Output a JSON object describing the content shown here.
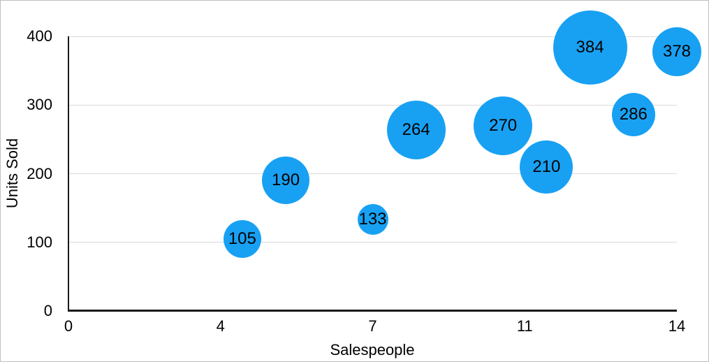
{
  "figure": {
    "background": "#ffffff",
    "border_color": "#bfbfbf"
  },
  "chart_data": {
    "type": "scatter",
    "subtype": "bubble",
    "title": "",
    "xlabel": "Salespeople",
    "ylabel": "Units Sold",
    "xlim": [
      0,
      14
    ],
    "ylim": [
      0,
      400
    ],
    "x_tick_labels": [
      "0",
      "4",
      "7",
      "11",
      "14"
    ],
    "x_tick_spacing": "even",
    "y_tick_labels": [
      "0",
      "100",
      "200",
      "300",
      "400"
    ],
    "grid": "horizontal-only",
    "legend": "none",
    "bubble_color": "#18a1f3",
    "bubble_label_color": "#000000",
    "axis_color": "#1a1a1a",
    "gridline_color": "#dadada",
    "text_color": "#000000",
    "points": [
      {
        "x": 4,
        "y": 105,
        "label": "105",
        "radius_px": 27
      },
      {
        "x": 5,
        "y": 190,
        "label": "190",
        "radius_px": 34
      },
      {
        "x": 7,
        "y": 133,
        "label": "133",
        "radius_px": 22
      },
      {
        "x": 8,
        "y": 264,
        "label": "264",
        "radius_px": 42
      },
      {
        "x": 10,
        "y": 270,
        "label": "270",
        "radius_px": 42
      },
      {
        "x": 11,
        "y": 210,
        "label": "210",
        "radius_px": 38
      },
      {
        "x": 12,
        "y": 384,
        "label": "384",
        "radius_px": 53
      },
      {
        "x": 13,
        "y": 286,
        "label": "286",
        "radius_px": 31
      },
      {
        "x": 14,
        "y": 378,
        "label": "378",
        "radius_px": 35
      }
    ]
  }
}
